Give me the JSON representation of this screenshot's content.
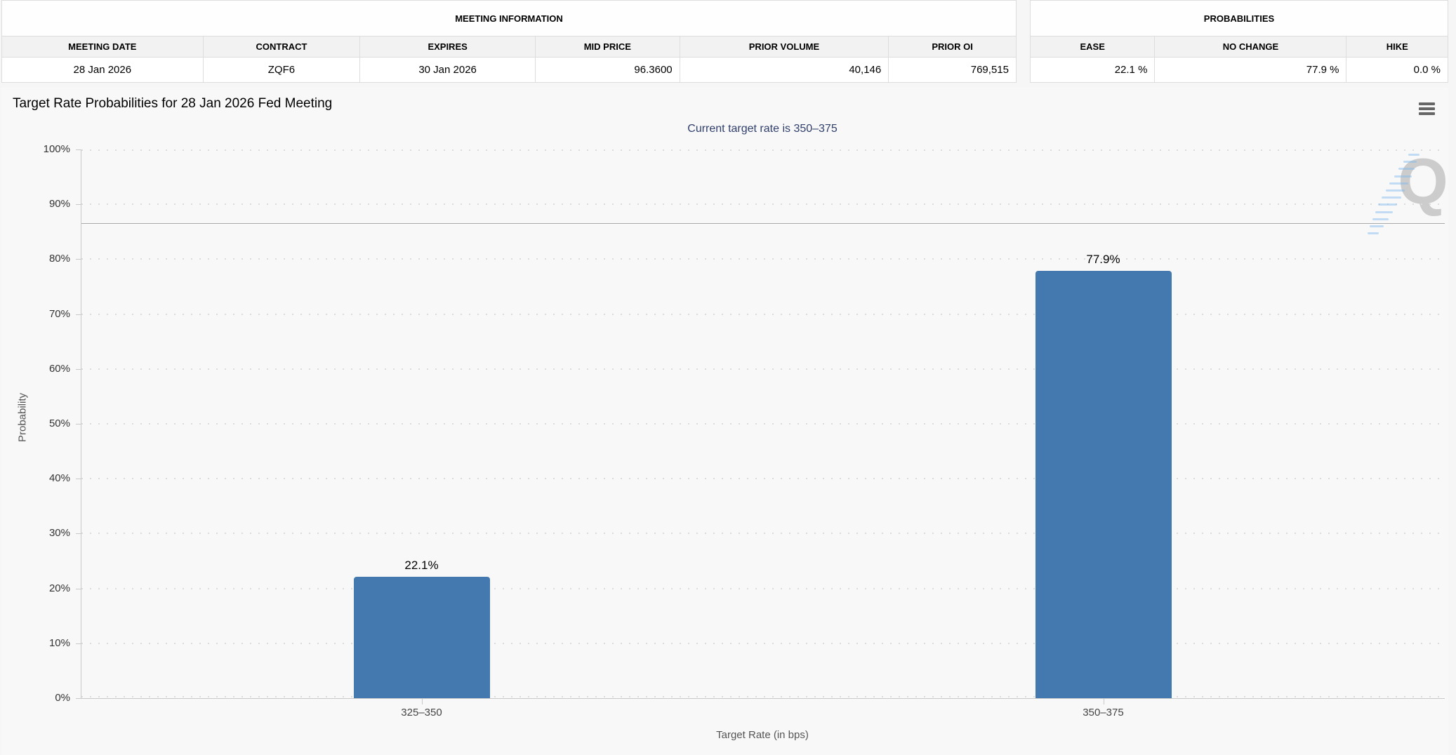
{
  "meeting_information": {
    "title": "MEETING INFORMATION",
    "columns": [
      "MEETING DATE",
      "CONTRACT",
      "EXPIRES",
      "MID PRICE",
      "PRIOR VOLUME",
      "PRIOR OI"
    ],
    "row": [
      "28 Jan 2026",
      "ZQF6",
      "30 Jan 2026",
      "96.3600",
      "40,146",
      "769,515"
    ]
  },
  "probabilities": {
    "title": "PROBABILITIES",
    "columns": [
      "EASE",
      "NO CHANGE",
      "HIKE"
    ],
    "row": [
      "22.1 %",
      "77.9 %",
      "0.0 %"
    ]
  },
  "chart": {
    "menu_icon": "hamburger-menu-icon",
    "watermark_letter": "Q"
  },
  "chart_data": {
    "type": "bar",
    "title": "Target Rate Probabilities for 28 Jan 2026 Fed Meeting",
    "subtitle": "Current target rate is 350–375",
    "categories": [
      "325–350",
      "350–375"
    ],
    "values": [
      22.1,
      77.9
    ],
    "bar_labels": [
      "22.1%",
      "77.9%"
    ],
    "xlabel": "Target Rate (in bps)",
    "ylabel": "Probability",
    "ylim": [
      0,
      100
    ],
    "yticks": [
      "0%",
      "10%",
      "20%",
      "30%",
      "40%",
      "50%",
      "60%",
      "70%",
      "80%",
      "90%",
      "100%"
    ],
    "grid": "dotted-horizontal",
    "legend": "none",
    "reference_line_y": 86.6,
    "bar_color": "#4379ae"
  }
}
